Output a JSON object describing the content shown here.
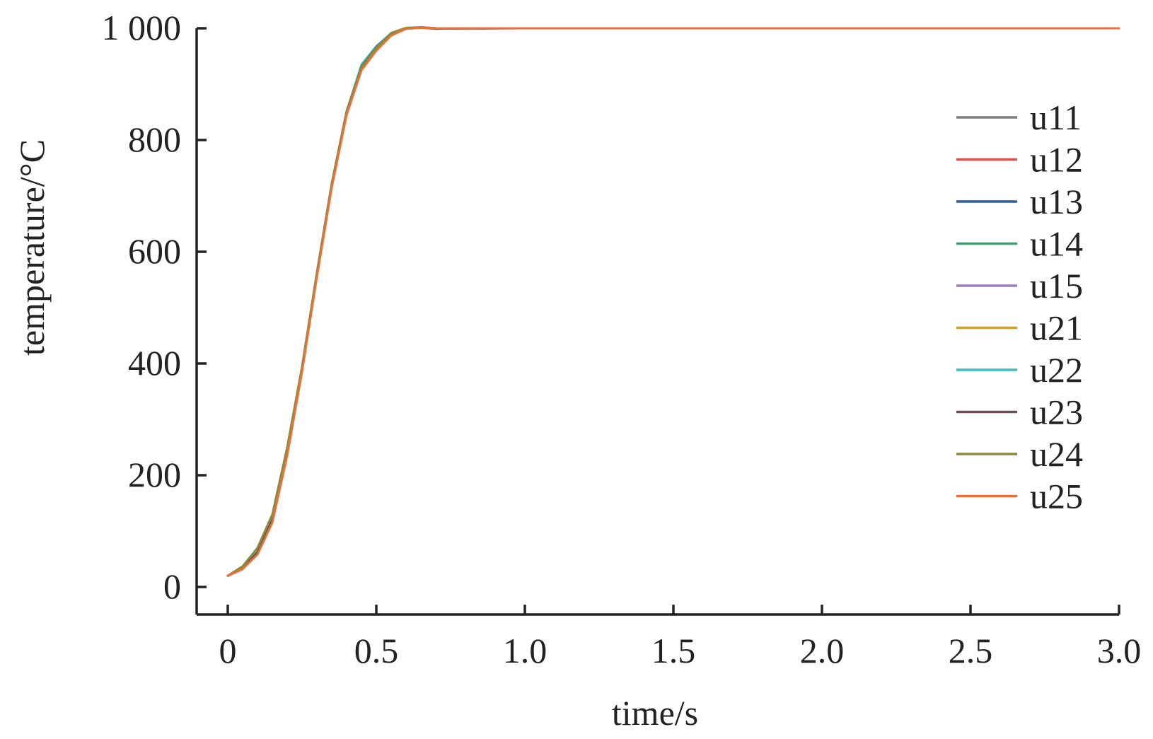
{
  "chart_data": {
    "type": "line",
    "xlabel": "time/s",
    "ylabel": "temperature/°C",
    "xlim": [
      0,
      3.0
    ],
    "ylim": [
      0,
      1000
    ],
    "xticks": [
      0,
      0.5,
      1.0,
      1.5,
      2.0,
      2.5,
      3.0
    ],
    "xtick_labels": [
      "0",
      "0.5",
      "1.0",
      "1.5",
      "2.0",
      "2.5",
      "3.0"
    ],
    "yticks": [
      0,
      200,
      400,
      600,
      800,
      1000
    ],
    "ytick_labels": [
      "0",
      "200",
      "400",
      "600",
      "800",
      "1 000"
    ],
    "grid": false,
    "legend_position": "right",
    "x": [
      0,
      0.05,
      0.1,
      0.15,
      0.2,
      0.25,
      0.3,
      0.35,
      0.4,
      0.45,
      0.5,
      0.55,
      0.6,
      0.65,
      0.7,
      0.8,
      1.0,
      1.5,
      2.0,
      2.5,
      3.0
    ],
    "series": [
      {
        "name": "u11",
        "color": "#7f7f7f",
        "values": [
          20,
          33,
          62,
          120,
          240,
          390,
          560,
          720,
          850,
          930,
          965,
          990,
          1000,
          1002,
          1000,
          999,
          1000,
          1000,
          1000,
          1000,
          1000
        ]
      },
      {
        "name": "u12",
        "color": "#d9534f",
        "values": [
          20,
          32,
          60,
          118,
          238,
          388,
          558,
          718,
          848,
          928,
          963,
          988,
          999,
          1001,
          1000,
          1000,
          1000,
          1000,
          1000,
          1000,
          1000
        ]
      },
      {
        "name": "u13",
        "color": "#2e5f9e",
        "values": [
          20,
          33,
          61,
          119,
          239,
          389,
          559,
          719,
          849,
          929,
          964,
          989,
          1000,
          1001,
          999,
          1000,
          1000,
          1000,
          1000,
          1000,
          1000
        ]
      },
      {
        "name": "u14",
        "color": "#3aa36b",
        "values": [
          20,
          34,
          63,
          121,
          241,
          391,
          561,
          721,
          851,
          931,
          966,
          991,
          1000,
          1002,
          1000,
          1000,
          1000,
          1000,
          1000,
          1000,
          1000
        ]
      },
      {
        "name": "u15",
        "color": "#9b7fc0",
        "values": [
          20,
          33,
          62,
          120,
          240,
          390,
          560,
          720,
          850,
          930,
          965,
          990,
          1000,
          1001,
          1000,
          1000,
          1000,
          1000,
          1000,
          1000,
          1000
        ]
      },
      {
        "name": "u21",
        "color": "#c9a03a",
        "values": [
          20,
          35,
          65,
          123,
          242,
          392,
          562,
          722,
          852,
          932,
          967,
          992,
          1001,
          1002,
          1000,
          1000,
          1000,
          1000,
          1000,
          1000,
          1000
        ]
      },
      {
        "name": "u22",
        "color": "#3bbcc0",
        "values": [
          20,
          34,
          63,
          122,
          241,
          391,
          561,
          721,
          851,
          935,
          968,
          991,
          1000,
          1001,
          1000,
          1000,
          1000,
          1000,
          1000,
          1000,
          1000
        ]
      },
      {
        "name": "u23",
        "color": "#6e4f4f",
        "values": [
          20,
          33,
          62,
          120,
          240,
          390,
          562,
          722,
          851,
          931,
          966,
          990,
          1000,
          1001,
          1000,
          1000,
          1000,
          1000,
          1000,
          1000,
          1000
        ]
      },
      {
        "name": "u24",
        "color": "#8a8a3a",
        "values": [
          20,
          37,
          70,
          130,
          250,
          395,
          563,
          722,
          851,
          930,
          965,
          990,
          1000,
          1001,
          1000,
          1000,
          1000,
          1000,
          1000,
          1000,
          1000
        ]
      },
      {
        "name": "u25",
        "color": "#e8713a",
        "values": [
          20,
          32,
          58,
          115,
          235,
          385,
          555,
          715,
          845,
          925,
          960,
          987,
          999,
          1001,
          1000,
          1000,
          1000,
          1000,
          1000,
          1000,
          1000
        ]
      }
    ]
  }
}
